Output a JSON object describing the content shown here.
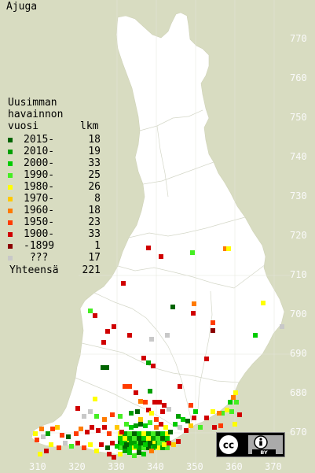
{
  "title": "Ajuga",
  "legend": {
    "heading": [
      "Uusimman",
      "havainnon"
    ],
    "col_year": "vuosi",
    "col_count": "lkm",
    "rows": [
      {
        "label": "2015-",
        "count": "18",
        "color": "#006400"
      },
      {
        "label": "2010-",
        "count": "19",
        "color": "#00a000"
      },
      {
        "label": "2000-",
        "count": "33",
        "color": "#00cc00"
      },
      {
        "label": "1990-",
        "count": "25",
        "color": "#44ee22"
      },
      {
        "label": "1980-",
        "count": "26",
        "color": "#ffff00"
      },
      {
        "label": "1970-",
        "count": "8",
        "color": "#ffc800"
      },
      {
        "label": "1960-",
        "count": "18",
        "color": "#ff7a00"
      },
      {
        "label": "1950-",
        "count": "23",
        "color": "#ff3c00"
      },
      {
        "label": "1900-",
        "count": "33",
        "color": "#d00000"
      },
      {
        "label": "-1899",
        "count": "1",
        "color": "#8b0000"
      },
      {
        "label": " ???",
        "count": "17",
        "color": "#c8c8c8"
      }
    ],
    "total_label": "Yhteensä",
    "total_count": "221"
  },
  "axes": {
    "x_ticks": [
      "310",
      "320",
      "330",
      "340",
      "350",
      "360",
      "370"
    ],
    "y_ticks": [
      "770",
      "760",
      "750",
      "740",
      "730",
      "720",
      "710",
      "700",
      "690",
      "680",
      "670"
    ]
  },
  "colors": {
    "background": "#d8dcc1",
    "land": "#ffffff",
    "grid": "#e0e0d4"
  },
  "license_badge": {
    "icons": [
      "cc-icon",
      "by-icon"
    ],
    "text": "BY"
  }
}
